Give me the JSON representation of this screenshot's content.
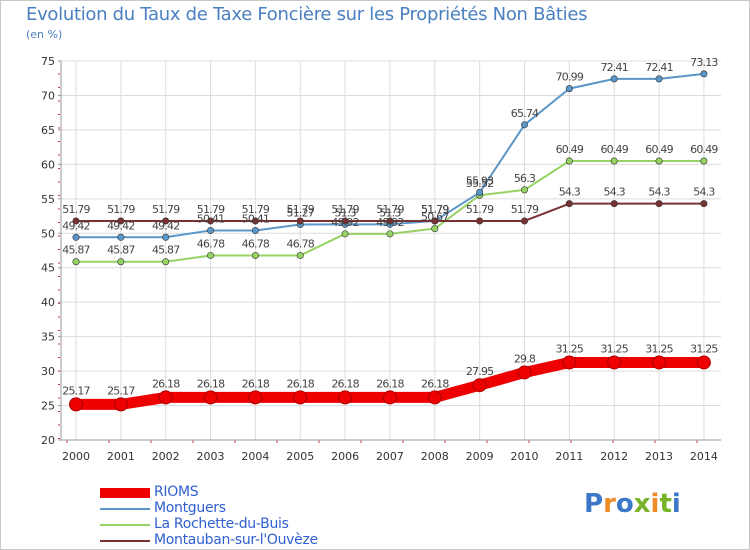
{
  "header": {
    "title": "Evolution du Taux de Taxe Foncière sur les Propriétés Non Bâties",
    "subtitle": "(en %)"
  },
  "logo": {
    "text": "Proxiti",
    "letters": [
      "P",
      "r",
      "o",
      "x",
      "i",
      "t",
      "i"
    ],
    "colors": [
      "#3c78c8",
      "#f08c28",
      "#3c78c8",
      "#78b428",
      "#f08c28",
      "#78b428",
      "#3c78c8"
    ]
  },
  "chart_data": {
    "type": "line",
    "title": "Evolution du Taux de Taxe Foncière sur les Propriétés Non Bâties",
    "ylabel": "(en %)",
    "xlabel": "",
    "ylim": [
      20,
      75
    ],
    "yticks": [
      20,
      25,
      30,
      35,
      40,
      45,
      50,
      55,
      60,
      65,
      70,
      75
    ],
    "categories": [
      "2000",
      "2001",
      "2002",
      "2003",
      "2004",
      "2005",
      "2006",
      "2007",
      "2008",
      "2009",
      "2010",
      "2011",
      "2012",
      "2013",
      "2014"
    ],
    "grid": true,
    "legend_position": "bottom-left",
    "series": [
      {
        "name": "RIOMS",
        "color": "#ee0000",
        "style": "thick",
        "values": [
          25.17,
          25.17,
          26.18,
          26.18,
          26.18,
          26.18,
          26.18,
          26.18,
          26.18,
          27.95,
          29.8,
          31.25,
          31.25,
          31.25,
          31.25
        ],
        "labels": [
          "25.17",
          "25.17",
          "26.18",
          "26.18",
          "26.18",
          "26.18",
          "26.18",
          "26.18",
          "26.18",
          "27.95",
          "29.8",
          "31.25",
          "31.25",
          "31.25",
          "31.25"
        ]
      },
      {
        "name": "Montguers",
        "color": "#5a96c8",
        "style": "thin",
        "values": [
          49.42,
          49.42,
          49.42,
          50.41,
          50.41,
          51.27,
          51.3,
          51.3,
          51.79,
          55.93,
          65.74,
          70.99,
          72.41,
          72.41,
          73.13
        ],
        "labels": [
          "49.42",
          "49.42",
          "49.42",
          "50.41",
          "50.41",
          "51.27",
          "51.3",
          "51.3",
          "51.79",
          "55.93",
          "65.74",
          "70.99",
          "72.41",
          "72.41",
          "73.13"
        ]
      },
      {
        "name": "La Rochette-du-Buis",
        "color": "#96d264",
        "style": "thin",
        "values": [
          45.87,
          45.87,
          45.87,
          46.78,
          46.78,
          46.78,
          49.92,
          49.92,
          50.67,
          55.52,
          56.3,
          60.49,
          60.49,
          60.49,
          60.49
        ],
        "labels": [
          "45.87",
          "45.87",
          "45.87",
          "46.78",
          "46.78",
          "46.78",
          "49.92",
          "49.92",
          "50.67",
          "55.52",
          "56.3",
          "60.49",
          "60.49",
          "60.49",
          "60.49"
        ]
      },
      {
        "name": "Montauban-sur-l'Ouvèze",
        "color": "#783232",
        "style": "thin",
        "values": [
          51.79,
          51.79,
          51.79,
          51.79,
          51.79,
          51.79,
          51.79,
          51.79,
          51.79,
          51.79,
          51.79,
          54.3,
          54.3,
          54.3,
          54.3
        ],
        "labels": [
          "51.79",
          "51.79",
          "51.79",
          "51.79",
          "51.79",
          "51.79",
          "51.79",
          "51.79",
          "51.79",
          "51.79",
          "51.79",
          "54.3",
          "54.3",
          "54.3",
          "54.3"
        ]
      }
    ]
  }
}
